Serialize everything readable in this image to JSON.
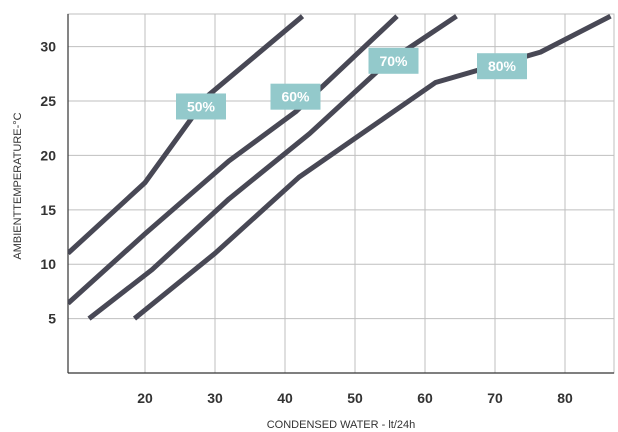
{
  "chart_data": {
    "type": "line",
    "xlabel": "CONDENSED WATER - lt/24h",
    "ylabel": "AMBIENTTEMPERATURE-°C",
    "xlim": [
      9,
      87
    ],
    "ylim": [
      0,
      33
    ],
    "xticks": [
      20,
      30,
      40,
      50,
      60,
      70,
      80
    ],
    "yticks": [
      5,
      10,
      15,
      20,
      25,
      30
    ],
    "grid": true,
    "series": [
      {
        "name": "50%",
        "points": [
          [
            9,
            11
          ],
          [
            20,
            17.5
          ],
          [
            29,
            25.5
          ],
          [
            42.5,
            32.8
          ]
        ]
      },
      {
        "name": "60%",
        "points": [
          [
            9,
            6.4
          ],
          [
            20,
            12.8
          ],
          [
            32,
            19.5
          ],
          [
            41.5,
            24
          ],
          [
            56,
            32.8
          ]
        ]
      },
      {
        "name": "70%",
        "points": [
          [
            12,
            5
          ],
          [
            21,
            9.5
          ],
          [
            32,
            16
          ],
          [
            43.5,
            22
          ],
          [
            54.5,
            28.5
          ],
          [
            64.5,
            32.8
          ]
        ]
      },
      {
        "name": "80%",
        "points": [
          [
            18.5,
            5
          ],
          [
            30,
            11
          ],
          [
            42,
            18
          ],
          [
            61.5,
            26.7
          ],
          [
            76.5,
            29.5
          ],
          [
            86.5,
            32.8
          ]
        ]
      }
    ],
    "labels": [
      {
        "text": "50%",
        "x": 28,
        "y": 24.5
      },
      {
        "text": "60%",
        "x": 41.5,
        "y": 25.4
      },
      {
        "text": "70%",
        "x": 55.5,
        "y": 28.7
      },
      {
        "text": "80%",
        "x": 71,
        "y": 28.2
      }
    ],
    "colors": {
      "line": "#484855",
      "grid": "#bfbfbf",
      "axis": "#333333",
      "label_bg": "#93c9cb",
      "label_text": "#ffffff"
    }
  }
}
